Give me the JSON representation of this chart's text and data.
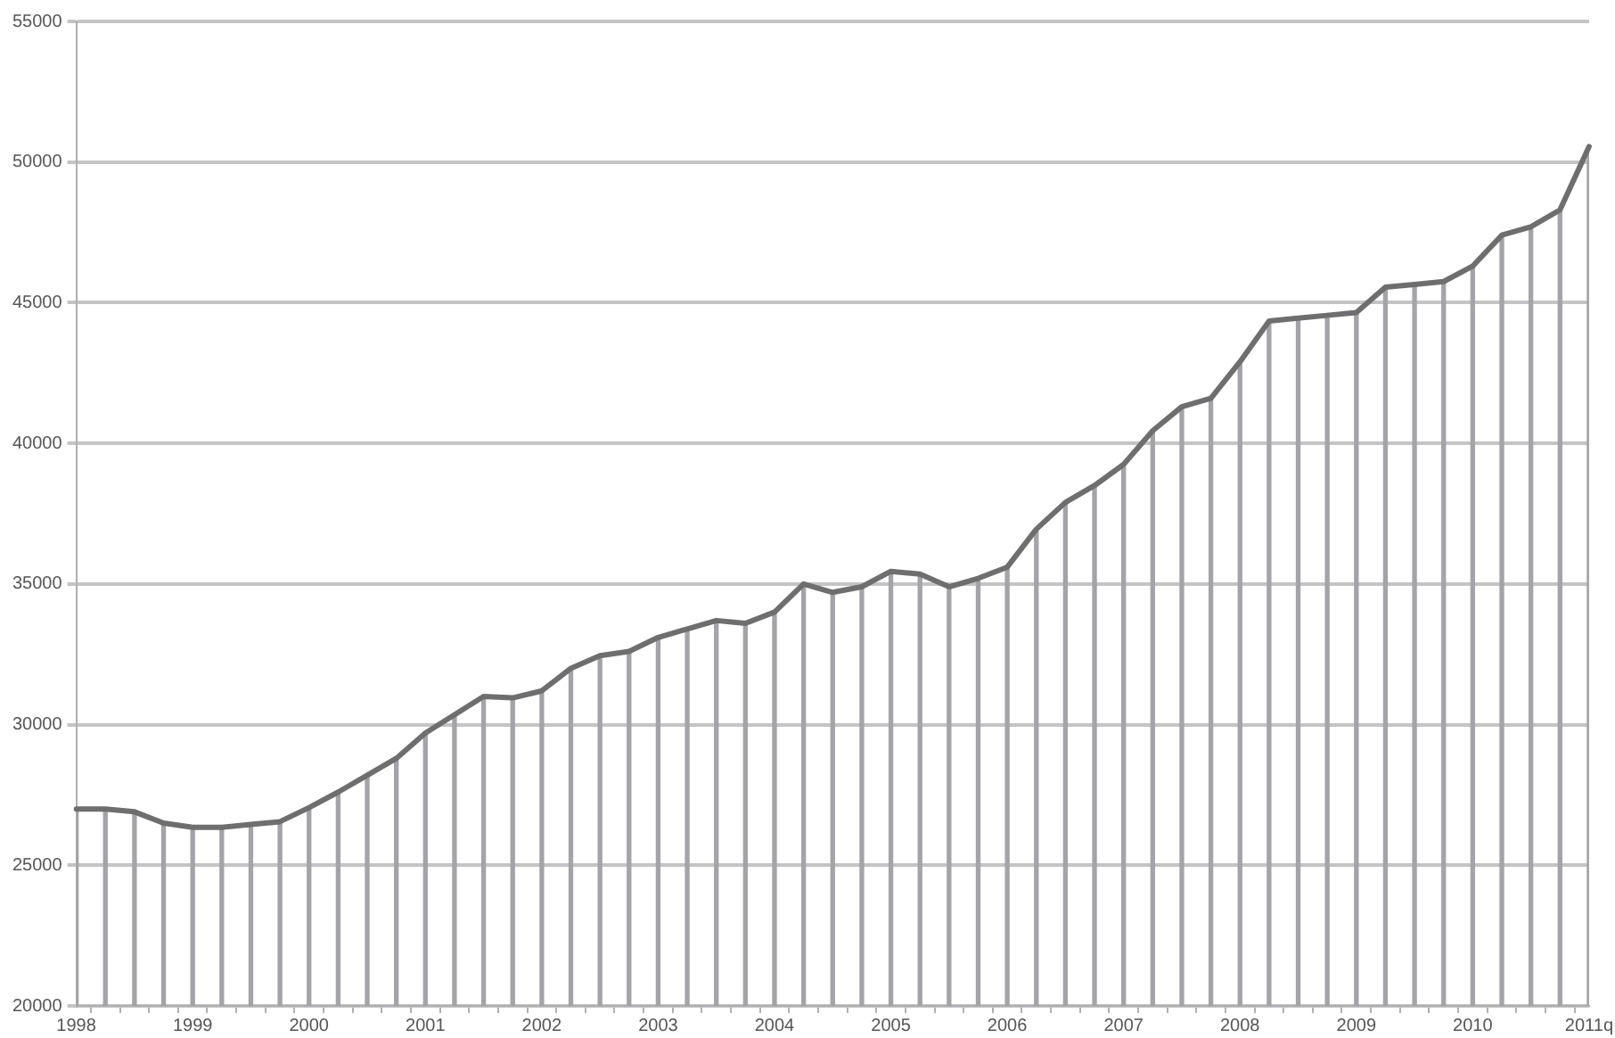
{
  "chart_data": {
    "type": "line",
    "categories": [
      "1998",
      null,
      null,
      null,
      "1999",
      null,
      null,
      null,
      "2000",
      null,
      null,
      null,
      "2001",
      null,
      null,
      null,
      "2002",
      null,
      null,
      null,
      "2003",
      null,
      null,
      null,
      "2004",
      null,
      null,
      null,
      "2005",
      null,
      null,
      null,
      "2006",
      null,
      null,
      null,
      "2007",
      null,
      null,
      null,
      "2008",
      null,
      null,
      null,
      "2009",
      null,
      null,
      null,
      "2010",
      null,
      null,
      null,
      "2011q"
    ],
    "series": [
      {
        "type": "bar",
        "color": "#a3a3a8",
        "values": [
          27000,
          27000,
          26900,
          26500,
          26350,
          26350,
          26450,
          26550,
          27050,
          27600,
          28200,
          28800,
          29700,
          30350,
          31000,
          30950,
          31200,
          32000,
          32450,
          32600,
          33100,
          33400,
          33700,
          33600,
          34000,
          35000,
          34700,
          34900,
          35450,
          35350,
          34900,
          35200,
          35600,
          36950,
          37900,
          38500,
          39250,
          40450,
          41300,
          41600,
          42900,
          44350,
          44450,
          44550,
          44650,
          45550,
          45650,
          45750,
          46300,
          47400,
          47700,
          48300,
          50550
        ]
      },
      {
        "color": "#6e6e6e",
        "values": [
          27000,
          27000,
          26900,
          26500,
          26350,
          26350,
          26450,
          26550,
          27050,
          27600,
          28200,
          28800,
          29700,
          30350,
          31000,
          30950,
          31200,
          32000,
          32450,
          32600,
          33100,
          33400,
          33700,
          33600,
          34000,
          35000,
          34700,
          34900,
          35450,
          35350,
          34900,
          35200,
          35600,
          36950,
          37900,
          38500,
          39250,
          40450,
          41300,
          41600,
          42900,
          44350,
          44450,
          44550,
          44650,
          45550,
          45650,
          45750,
          46300,
          47400,
          47700,
          48300,
          50550
        ]
      }
    ],
    "ylim": [
      20000,
      55000
    ],
    "yticks": [
      20000,
      25000,
      30000,
      35000,
      40000,
      45000,
      50000,
      55000
    ],
    "grid": "y",
    "legend": false,
    "marker": "none",
    "line_style": "solid"
  }
}
